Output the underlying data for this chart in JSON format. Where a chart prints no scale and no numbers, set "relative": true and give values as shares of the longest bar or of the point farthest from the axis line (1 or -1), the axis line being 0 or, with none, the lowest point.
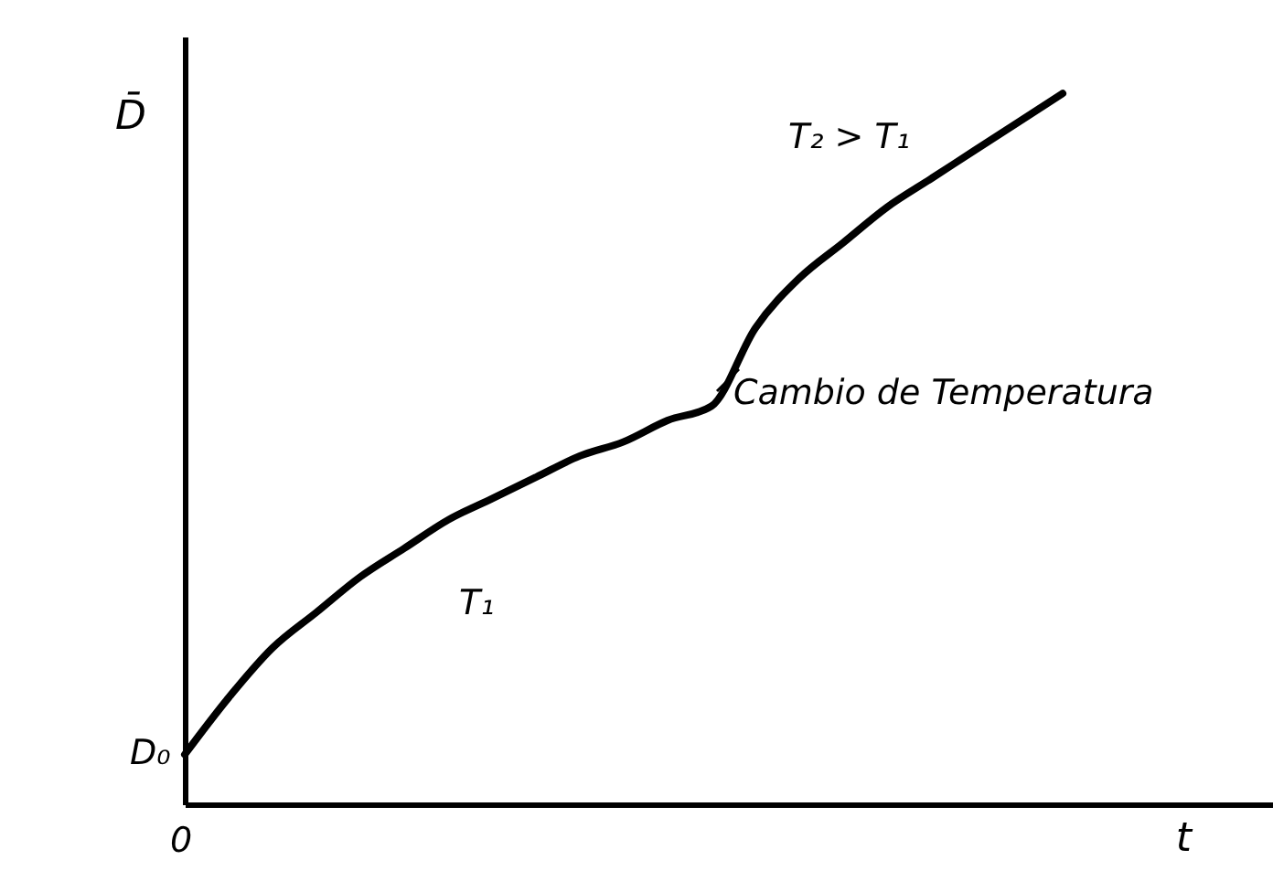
{
  "chart_data": {
    "type": "line",
    "relative": true,
    "ylabel": "D̄",
    "xlabel": "t",
    "categories": [
      null,
      null,
      null,
      null,
      null,
      null,
      null,
      null,
      null,
      null,
      null,
      null,
      null,
      null,
      null,
      null,
      null,
      null,
      null,
      null,
      null,
      null,
      null,
      null,
      null,
      null
    ],
    "values": [
      0.07,
      0.15,
      0.22,
      0.27,
      0.32,
      0.36,
      0.4,
      0.43,
      0.46,
      0.49,
      0.51,
      0.54,
      0.56,
      0.67,
      0.74,
      0.79,
      0.84,
      0.88,
      0.92,
      0.96,
      1,
      null,
      null,
      null,
      null,
      null
    ],
    "color": "#000000",
    "marker": "none",
    "line_style": "solid",
    "grid": false,
    "annotations": [
      "0",
      "D₀",
      "T₁",
      "T₂ > T₁",
      "Cambio de Temperatura"
    ]
  }
}
